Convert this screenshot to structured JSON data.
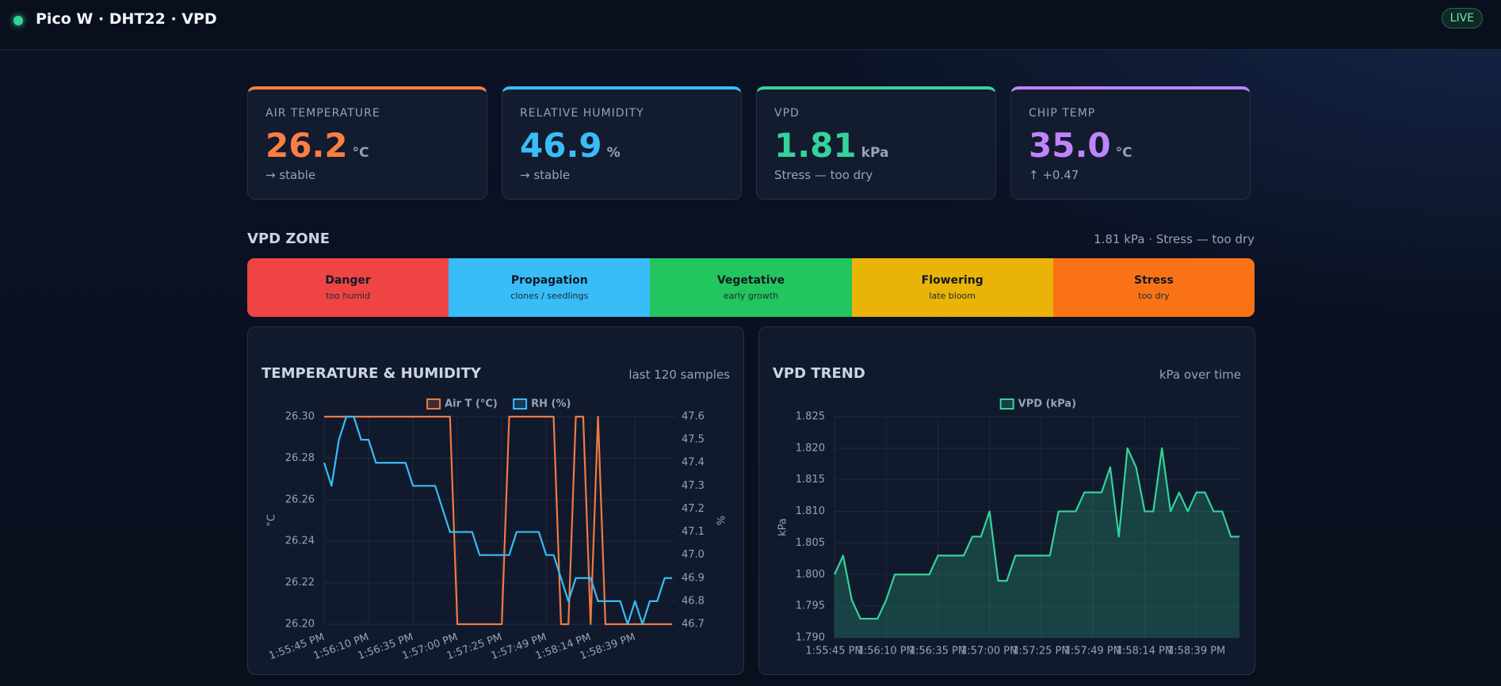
{
  "header": {
    "title": "Pico W · DHT22 · VPD",
    "badge": "LIVE"
  },
  "cards": [
    {
      "label": "AIR TEMPERATURE",
      "value": "26.2",
      "unit": "°C",
      "note": "→ stable",
      "color": "#fb7e45"
    },
    {
      "label": "RELATIVE HUMIDITY",
      "value": "46.9",
      "unit": "%",
      "note": "→ stable",
      "color": "#38bdf8"
    },
    {
      "label": "VPD",
      "value": "1.81",
      "unit": "kPa",
      "note": "Stress — too dry",
      "color": "#34d399"
    },
    {
      "label": "CHIP TEMP",
      "value": "35.0",
      "unit": "°C",
      "note": "↑ +0.47",
      "color": "#c084fc"
    }
  ],
  "zone": {
    "title": "VPD ZONE",
    "summary": "1.81 kPa · Stress — too dry",
    "segments": [
      {
        "name": "Danger",
        "desc": "too humid",
        "color": "#ef4444"
      },
      {
        "name": "Propagation",
        "desc": "clones / seedlings",
        "color": "#38bdf8"
      },
      {
        "name": "Vegetative",
        "desc": "early growth",
        "color": "#22c55e"
      },
      {
        "name": "Flowering",
        "desc": "late bloom",
        "color": "#eab308"
      },
      {
        "name": "Stress",
        "desc": "too dry",
        "color": "#f97316"
      }
    ]
  },
  "chart_data": [
    {
      "type": "line",
      "title": "TEMPERATURE & HUMIDITY",
      "subtitle": "last 120 samples",
      "categories": [
        "1:55:45 PM",
        null,
        null,
        null,
        null,
        null,
        "1:56:10 PM",
        null,
        null,
        null,
        null,
        null,
        "1:56:35 PM",
        null,
        null,
        null,
        null,
        null,
        "1:57:00 PM",
        null,
        null,
        null,
        null,
        null,
        "1:57:25 PM",
        null,
        null,
        null,
        null,
        null,
        "1:57:49 PM",
        null,
        null,
        null,
        null,
        null,
        "1:58:14 PM",
        null,
        null,
        null,
        null,
        null,
        "1:58:39 PM",
        null,
        null,
        null,
        null,
        null
      ],
      "series": [
        {
          "name": "Air T (°C)",
          "color": "#ee7b43",
          "axis": "y",
          "values": [
            26.3,
            26.3,
            26.3,
            26.3,
            26.3,
            26.3,
            26.3,
            26.3,
            26.3,
            26.3,
            26.3,
            26.3,
            26.3,
            26.3,
            26.3,
            26.3,
            26.3,
            26.3,
            26.2,
            26.2,
            26.2,
            26.2,
            26.2,
            26.2,
            26.2,
            26.3,
            26.3,
            26.3,
            26.3,
            26.3,
            26.3,
            26.3,
            26.2,
            26.2,
            26.3,
            26.3,
            26.2,
            26.3,
            26.2,
            26.2,
            26.2,
            26.2,
            26.2,
            26.2,
            26.2,
            26.2,
            26.2,
            26.2
          ]
        },
        {
          "name": "RH (%)",
          "color": "#38bdf8",
          "axis": "y2",
          "values": [
            47.4,
            47.3,
            47.5,
            47.6,
            47.6,
            47.5,
            47.5,
            47.4,
            47.4,
            47.4,
            47.4,
            47.4,
            47.3,
            47.3,
            47.3,
            47.3,
            47.2,
            47.1,
            47.1,
            47.1,
            47.1,
            47.0,
            47.0,
            47.0,
            47.0,
            47.0,
            47.1,
            47.1,
            47.1,
            47.1,
            47.0,
            47.0,
            46.9,
            46.8,
            46.9,
            46.9,
            46.9,
            46.8,
            46.8,
            46.8,
            46.8,
            46.7,
            46.8,
            46.7,
            46.8,
            46.8,
            46.9,
            46.9
          ]
        }
      ],
      "ylabel": "°C",
      "y2label": "%",
      "ylim": [
        26.2,
        26.3
      ],
      "yticks": [
        {
          "value": 26.2,
          "label": "26.20"
        },
        26.22,
        26.24,
        26.26,
        26.28,
        {
          "value": 26.3,
          "label": "26.30"
        }
      ],
      "y2lim": [
        46.7,
        47.6
      ],
      "y2ticks": [
        46.7,
        46.8,
        46.9,
        {
          "value": 47.0,
          "label": "47.0"
        },
        47.1,
        47.2,
        47.3,
        47.4,
        47.5,
        47.6
      ],
      "grid": true,
      "legend": "top"
    },
    {
      "type": "line",
      "title": "VPD TREND",
      "subtitle": "kPa over time",
      "categories": [
        "1:55:45 PM",
        null,
        null,
        null,
        null,
        null,
        "1:56:10 PM",
        null,
        null,
        null,
        null,
        null,
        "1:56:35 PM",
        null,
        null,
        null,
        null,
        null,
        "1:57:00 PM",
        null,
        null,
        null,
        null,
        null,
        "1:57:25 PM",
        null,
        null,
        null,
        null,
        null,
        "1:57:49 PM",
        null,
        null,
        null,
        null,
        null,
        "1:58:14 PM",
        null,
        null,
        null,
        null,
        null,
        "1:58:39 PM",
        null,
        null,
        null,
        null,
        null
      ],
      "series": [
        {
          "name": "VPD (kPa)",
          "color": "#34d399",
          "axis": "y",
          "area": true,
          "values": [
            1.8,
            1.803,
            1.796,
            1.793,
            1.793,
            1.793,
            1.796,
            1.8,
            1.8,
            1.8,
            1.8,
            1.8,
            1.803,
            1.803,
            1.803,
            1.803,
            1.806,
            1.806,
            1.81,
            1.799,
            1.799,
            1.803,
            1.803,
            1.803,
            1.803,
            1.803,
            1.81,
            1.81,
            1.81,
            1.813,
            1.813,
            1.813,
            1.817,
            1.806,
            1.82,
            1.817,
            1.81,
            1.81,
            1.82,
            1.81,
            1.813,
            1.81,
            1.813,
            1.813,
            1.81,
            1.81,
            1.806,
            1.806
          ]
        }
      ],
      "ylabel": "kPa",
      "ylim": [
        1.79,
        1.825
      ],
      "yticks": [
        {
          "value": 1.79,
          "label": "1.790"
        },
        1.795,
        {
          "value": 1.8,
          "label": "1.800"
        },
        1.805,
        {
          "value": 1.81,
          "label": "1.810"
        },
        1.815,
        {
          "value": 1.82,
          "label": "1.820"
        },
        1.825
      ],
      "grid": true,
      "legend": "top"
    }
  ]
}
